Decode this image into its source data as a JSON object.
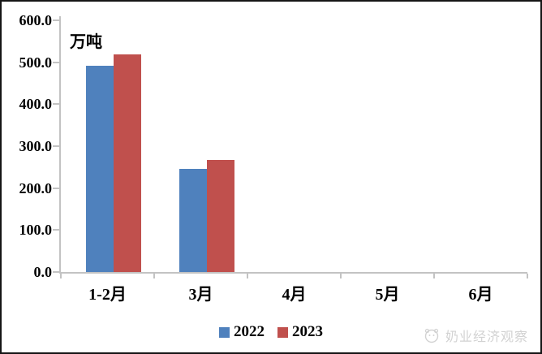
{
  "chart_data": {
    "type": "bar",
    "title": "",
    "unit_label": "万吨",
    "categories": [
      "1-2月",
      "3月",
      "4月",
      "5月",
      "6月"
    ],
    "series": [
      {
        "name": "2022",
        "color": "#4F81BD",
        "values": [
          491,
          246,
          null,
          null,
          null
        ]
      },
      {
        "name": "2023",
        "color": "#C0504D",
        "values": [
          518,
          267,
          null,
          null,
          null
        ]
      }
    ],
    "ylim": [
      0,
      600
    ],
    "ytick_step": 100,
    "ytick_labels": [
      "0.0",
      "100.0",
      "200.0",
      "300.0",
      "400.0",
      "500.0",
      "600.0"
    ],
    "grid": false,
    "legend_position": "bottom-center",
    "axis_color": "#C3C3C3"
  },
  "watermark": {
    "text": "奶业经济观察",
    "color": "#D2D2D2",
    "icon": "circle-logo"
  }
}
